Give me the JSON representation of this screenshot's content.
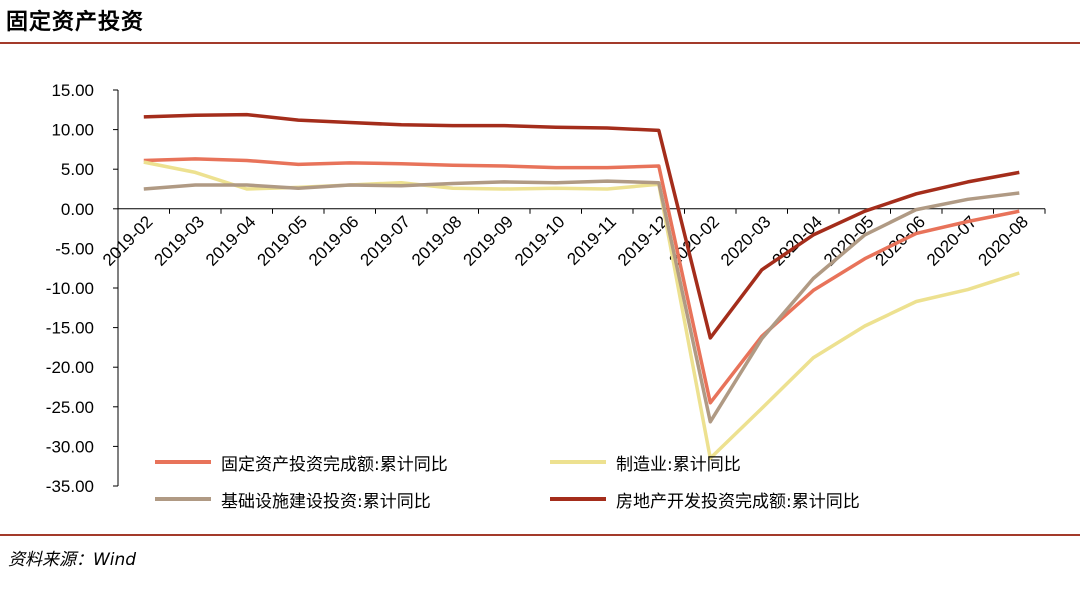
{
  "header": {
    "title": "固定资产投资"
  },
  "footer": {
    "source": "资料来源：Wind"
  },
  "chart_data": {
    "type": "line",
    "title": "固定资产投资",
    "xlabel": "",
    "ylabel": "",
    "ylim": [
      -35,
      15
    ],
    "yticks": [
      "15.00",
      "10.00",
      "5.00",
      "0.00",
      "-5.00",
      "-10.00",
      "-15.00",
      "-20.00",
      "-25.00",
      "-30.00",
      "-35.00"
    ],
    "categories": [
      "2019-02",
      "2019-03",
      "2019-04",
      "2019-05",
      "2019-06",
      "2019-07",
      "2019-08",
      "2019-09",
      "2019-10",
      "2019-11",
      "2019-12",
      "2020-02",
      "2020-03",
      "2020-04",
      "2020-05",
      "2020-06",
      "2020-07",
      "2020-08"
    ],
    "legend_position": "bottom",
    "grid": false,
    "series": [
      {
        "name": "固定资产投资完成额:累计同比",
        "color": "#e8735a",
        "values": [
          6.1,
          6.3,
          6.1,
          5.6,
          5.8,
          5.7,
          5.5,
          5.4,
          5.2,
          5.2,
          5.4,
          -24.5,
          -16.1,
          -10.3,
          -6.3,
          -3.1,
          -1.6,
          -0.3
        ]
      },
      {
        "name": "制造业:累计同比",
        "color": "#ede190",
        "values": [
          5.9,
          4.6,
          2.5,
          2.7,
          3.0,
          3.3,
          2.6,
          2.5,
          2.6,
          2.5,
          3.1,
          -31.5,
          -25.2,
          -18.8,
          -14.8,
          -11.7,
          -10.2,
          -8.1
        ]
      },
      {
        "name": "基础设施建设投资:累计同比",
        "color": "#b09a84",
        "values": [
          2.5,
          3.0,
          3.0,
          2.6,
          3.0,
          2.9,
          3.2,
          3.4,
          3.3,
          3.5,
          3.3,
          -26.9,
          -16.4,
          -8.8,
          -3.3,
          -0.1,
          1.2,
          2.0
        ]
      },
      {
        "name": "房地产开发投资完成额:累计同比",
        "color": "#a42d1b",
        "values": [
          11.6,
          11.8,
          11.9,
          11.2,
          10.9,
          10.6,
          10.5,
          10.5,
          10.3,
          10.2,
          9.9,
          -16.3,
          -7.7,
          -3.3,
          -0.3,
          1.9,
          3.4,
          4.6
        ]
      }
    ]
  }
}
